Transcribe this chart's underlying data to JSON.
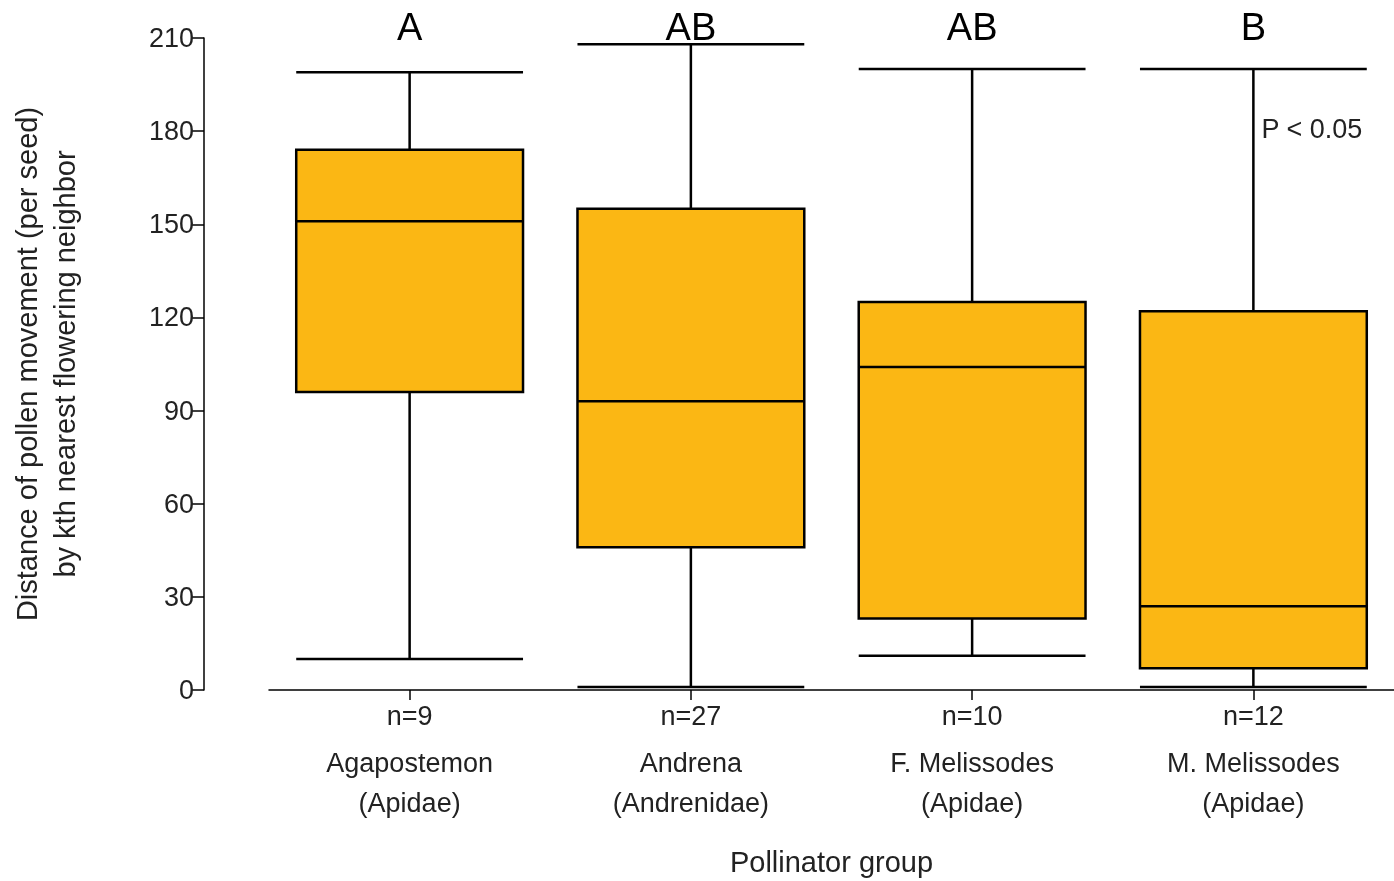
{
  "chart_data": {
    "type": "box",
    "xlabel": "Pollinator group",
    "ylabel": "Distance of pollen movement (per seed)\nby kth nearest flowering neighbor",
    "categories": [
      "Agapostemon\n(Apidae)",
      "Andrena\n(Andrenidae)",
      "F. Melissodes\n(Apidae)",
      "M. Melissodes\n(Apidae)"
    ],
    "series": [
      {
        "color": "#fbb714",
        "boxes": [
          {
            "low": 10,
            "q1": 96,
            "median": 151,
            "q3": 174,
            "high": 199
          },
          {
            "low": 1,
            "q1": 46,
            "median": 93,
            "q3": 155,
            "high": 208
          },
          {
            "low": 11,
            "q1": 23,
            "median": 104,
            "q3": 125,
            "high": 200
          },
          {
            "low": 1,
            "q1": 7,
            "median": 27,
            "q3": 122,
            "high": 200
          }
        ]
      }
    ],
    "ylim": [
      0,
      210
    ],
    "yticks": [
      0,
      30,
      60,
      90,
      120,
      150,
      180,
      210
    ],
    "annotations": [
      "A",
      "AB",
      "AB",
      "B",
      "n=9",
      "n=27",
      "n=10",
      "n=12",
      "P < 0.05"
    ]
  }
}
